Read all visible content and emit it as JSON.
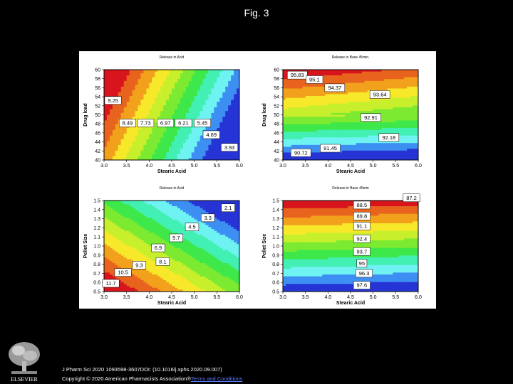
{
  "title": "Fig. 3",
  "footer": {
    "citation": "J Pharm Sci 2020 1093598-3607DOI: (10.1016/j.xphs.2020.09.007)",
    "copyright": "Copyright © 2020 American Pharmacists Association®",
    "link": "Terms and Conditions"
  },
  "publisher_logo": "ELSEVIER",
  "chart_data": [
    {
      "type": "contour",
      "title": "Release in Acid",
      "xlabel": "Stearic Acid",
      "ylabel": "Drug load",
      "xlim": [
        3.0,
        6.0
      ],
      "ylim": [
        40,
        60
      ],
      "xticks": [
        "3.0",
        "3.5",
        "4.0",
        "4.5",
        "5.0",
        "5.5",
        "6.0"
      ],
      "yticks": [
        "40",
        "42",
        "44",
        "46",
        "48",
        "50",
        "52",
        "54",
        "56",
        "58",
        "60"
      ],
      "contour_labels": [
        {
          "x": 3.2,
          "y": 53.2,
          "text": "9.25"
        },
        {
          "x": 3.52,
          "y": 48.2,
          "text": "8.49"
        },
        {
          "x": 3.92,
          "y": 48.2,
          "text": "7.73"
        },
        {
          "x": 4.36,
          "y": 48.2,
          "text": "6.97"
        },
        {
          "x": 4.76,
          "y": 48.2,
          "text": "6.21"
        },
        {
          "x": 5.18,
          "y": 48.2,
          "text": "5.45"
        },
        {
          "x": 5.38,
          "y": 45.6,
          "text": "4.69"
        },
        {
          "x": 5.78,
          "y": 42.8,
          "text": "3.93"
        }
      ]
    },
    {
      "type": "contour",
      "title": "Release in Base 45min.",
      "xlabel": "Stearic Acid",
      "ylabel": "Drug load",
      "xlim": [
        3.0,
        6.0
      ],
      "ylim": [
        40,
        60
      ],
      "xticks": [
        "3.0",
        "3.5",
        "4.0",
        "4.5",
        "5.0",
        "5.5",
        "6.0"
      ],
      "yticks": [
        "40",
        "42",
        "44",
        "46",
        "48",
        "50",
        "52",
        "54",
        "56",
        "58",
        "60"
      ],
      "contour_labels": [
        {
          "x": 3.32,
          "y": 58.8,
          "text": "95.83"
        },
        {
          "x": 3.7,
          "y": 57.8,
          "text": "95.1"
        },
        {
          "x": 4.15,
          "y": 56.0,
          "text": "94.37"
        },
        {
          "x": 5.15,
          "y": 54.5,
          "text": "93.64"
        },
        {
          "x": 4.95,
          "y": 49.4,
          "text": "92.91"
        },
        {
          "x": 5.35,
          "y": 45.0,
          "text": "92.18"
        },
        {
          "x": 4.05,
          "y": 42.6,
          "text": "91.45"
        },
        {
          "x": 3.4,
          "y": 41.6,
          "text": "90.72"
        }
      ]
    },
    {
      "type": "contour",
      "title": "Release in Acid",
      "xlabel": "Stearic Acid",
      "ylabel": "Pellet Size",
      "xlim": [
        3.0,
        6.0
      ],
      "ylim": [
        0.5,
        1.5
      ],
      "xticks": [
        "3.0",
        "3.5",
        "4.0",
        "4.5",
        "5.0",
        "5.5",
        "6.0"
      ],
      "yticks": [
        "0.5",
        "0.6",
        "0.7",
        "0.8",
        "0.9",
        "1.0",
        "1.1",
        "1.2",
        "1.3",
        "1.4",
        "1.5"
      ],
      "contour_labels": [
        {
          "x": 5.75,
          "y": 1.42,
          "text": "2.1"
        },
        {
          "x": 5.3,
          "y": 1.31,
          "text": "3.3"
        },
        {
          "x": 4.95,
          "y": 1.21,
          "text": "4.5"
        },
        {
          "x": 4.6,
          "y": 1.09,
          "text": "5.7"
        },
        {
          "x": 4.2,
          "y": 0.98,
          "text": "6.9"
        },
        {
          "x": 4.3,
          "y": 0.83,
          "text": "8.1"
        },
        {
          "x": 3.78,
          "y": 0.79,
          "text": "9.3"
        },
        {
          "x": 3.42,
          "y": 0.71,
          "text": "10.5"
        },
        {
          "x": 3.15,
          "y": 0.59,
          "text": "11.7"
        }
      ]
    },
    {
      "type": "contour",
      "title": "Release in Base 45min",
      "xlabel": "Stearic Acid",
      "ylabel": "Pellet Size",
      "xlim": [
        3.0,
        6.0
      ],
      "ylim": [
        0.5,
        1.5
      ],
      "xticks": [
        "3.0",
        "3.5",
        "4.0",
        "4.5",
        "5.0",
        "5.5",
        "6.0"
      ],
      "yticks": [
        "0.5",
        "0.6",
        "0.7",
        "0.8",
        "0.9",
        "1.0",
        "1.1",
        "1.2",
        "1.3",
        "1.4",
        "1.5"
      ],
      "contour_labels": [
        {
          "x": 5.85,
          "y": 1.53,
          "text": "87.2"
        },
        {
          "x": 4.75,
          "y": 1.45,
          "text": "88.5"
        },
        {
          "x": 4.75,
          "y": 1.33,
          "text": "89.8"
        },
        {
          "x": 4.75,
          "y": 1.22,
          "text": "91.1"
        },
        {
          "x": 4.75,
          "y": 1.08,
          "text": "92.4"
        },
        {
          "x": 4.75,
          "y": 0.94,
          "text": "93.7"
        },
        {
          "x": 4.75,
          "y": 0.81,
          "text": "95"
        },
        {
          "x": 4.8,
          "y": 0.7,
          "text": "96.3"
        },
        {
          "x": 4.75,
          "y": 0.57,
          "text": "97.6"
        }
      ]
    }
  ]
}
